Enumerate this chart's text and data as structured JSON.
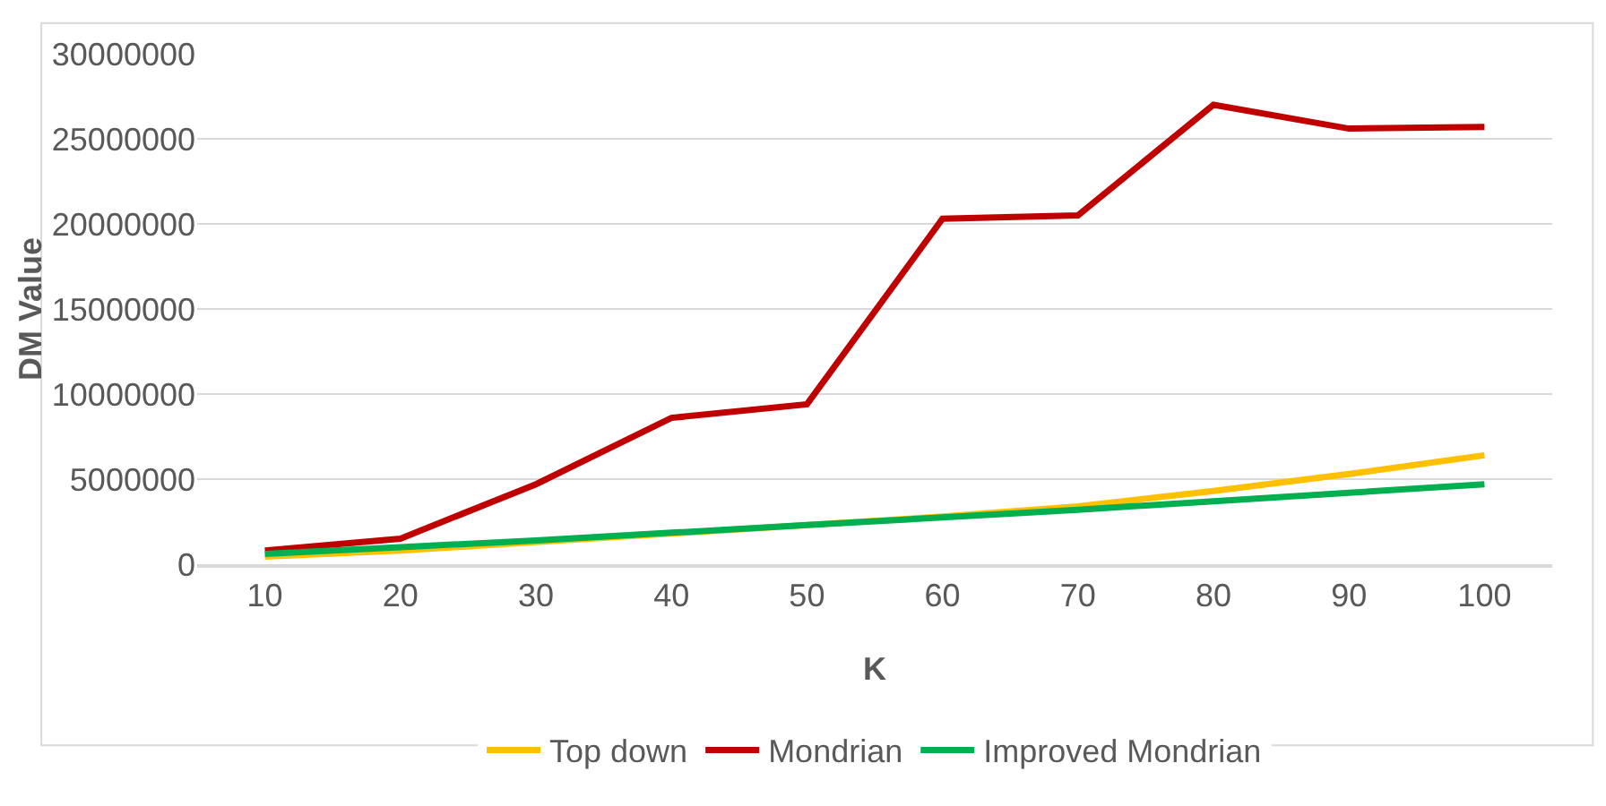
{
  "chart_data": {
    "type": "line",
    "xlabel": "K",
    "ylabel": "DM Value",
    "categories": [
      "10",
      "20",
      "30",
      "40",
      "50",
      "60",
      "70",
      "80",
      "90",
      "100"
    ],
    "series": [
      {
        "name": "Top down",
        "color": "#ffc000",
        "values": [
          450000,
          800000,
          1300000,
          1800000,
          2300000,
          2800000,
          3400000,
          4300000,
          5300000,
          6400000
        ]
      },
      {
        "name": "Mondrian",
        "color": "#c00000",
        "values": [
          800000,
          1500000,
          4700000,
          8600000,
          9400000,
          20300000,
          20500000,
          27000000,
          25600000,
          25700000
        ]
      },
      {
        "name": "Improved Mondrian",
        "color": "#00b050",
        "values": [
          600000,
          1000000,
          1400000,
          1850000,
          2300000,
          2750000,
          3200000,
          3700000,
          4200000,
          4700000
        ]
      }
    ],
    "ylim": [
      0,
      30000000
    ],
    "yticks": [
      0,
      5000000,
      10000000,
      15000000,
      20000000,
      25000000,
      30000000
    ],
    "grid": "y",
    "legend": "bottom",
    "marker": "none",
    "line_style": "solid"
  }
}
